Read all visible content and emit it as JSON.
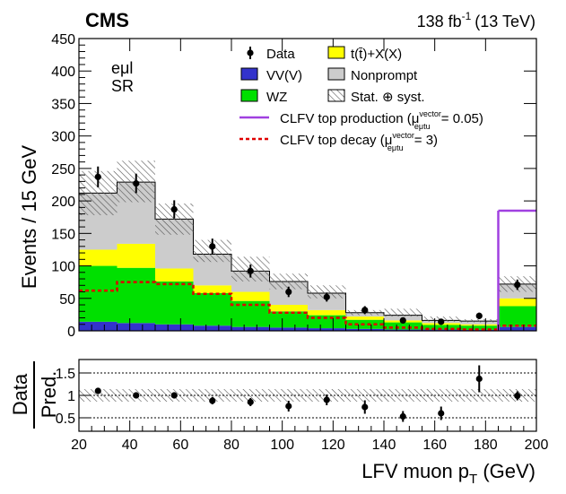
{
  "header": {
    "experiment": "CMS",
    "lumi_value": "138 fb",
    "lumi_exp": "-1",
    "lumi_energy": "(13 TeV)"
  },
  "channel": {
    "line1": "eμl",
    "line2": "SR"
  },
  "legend": {
    "data": "Data",
    "vvv": "VV(V)",
    "wz": "WZ",
    "ttx": "t(t̄)+X(X)",
    "nonprompt": "Nonprompt",
    "syst": "Stat. ⊕ syst.",
    "prod_text": "CLFV top production (μ",
    "prod_sup": "vector",
    "prod_sub": "eμtu",
    "prod_end": " = 0.05)",
    "decay_text": "CLFV top decay (μ",
    "decay_sup": "vector",
    "decay_sub": "eμtu",
    "decay_end": " = 3)"
  },
  "axes": {
    "ylabel_top": "Events / 15 GeV",
    "ylabel_ratio_num": "Data",
    "ylabel_ratio_den": "Pred.",
    "xlabel_main": "LFV muon p",
    "xlabel_sub": "T",
    "xlabel_unit": " (GeV)"
  },
  "colors": {
    "vvv": "#3333cc",
    "wz": "#00e000",
    "ttx": "#ffff00",
    "nonprompt": "#cccccc",
    "signal_prod": "#a040e0",
    "signal_decay": "#e00000"
  },
  "chart_data": {
    "type": "bar",
    "bin_edges": [
      20,
      35,
      50,
      65,
      80,
      95,
      110,
      125,
      140,
      155,
      170,
      185,
      200
    ],
    "main_ylim": [
      0,
      450
    ],
    "main_yticks": [
      0,
      50,
      100,
      150,
      200,
      250,
      300,
      350,
      400,
      450
    ],
    "ratio_ylim": [
      0.2,
      1.8
    ],
    "ratio_yticks": [
      0.5,
      1,
      1.5
    ],
    "xticks": [
      20,
      40,
      60,
      80,
      100,
      120,
      140,
      160,
      180,
      200
    ],
    "stack": [
      {
        "name": "VV(V)",
        "key": "vvv",
        "values": [
          14,
          12,
          10,
          8,
          6,
          5,
          4,
          3,
          2,
          2,
          1.5,
          6
        ]
      },
      {
        "name": "WZ",
        "key": "wz",
        "values": [
          86,
          85,
          66,
          50,
          40,
          25,
          20,
          14,
          11,
          7,
          6.5,
          32
        ]
      },
      {
        "name": "t(t̄)+X(X)",
        "key": "ttx",
        "values": [
          25,
          37,
          20,
          12,
          14,
          10,
          8,
          5,
          3,
          3,
          2,
          12
        ]
      },
      {
        "name": "Nonprompt",
        "key": "nonprompt",
        "values": [
          87,
          95,
          76,
          48,
          32,
          36,
          26,
          6,
          8,
          4,
          5,
          22
        ]
      }
    ],
    "syst_band": [
      [
        178,
        246
      ],
      [
        198,
        262
      ],
      [
        148,
        196
      ],
      [
        106,
        140
      ],
      [
        76,
        114
      ],
      [
        64,
        88
      ],
      [
        50,
        70
      ],
      [
        24,
        32
      ],
      [
        22,
        34
      ],
      [
        14,
        22
      ],
      [
        13,
        18
      ],
      [
        60,
        84
      ]
    ],
    "data": {
      "name": "Data",
      "x": [
        27.5,
        42.5,
        57.5,
        72.5,
        87.5,
        102.5,
        117.5,
        132.5,
        147.5,
        162.5,
        177.5,
        192.5
      ],
      "y": [
        237,
        227,
        187,
        130,
        92,
        60,
        52,
        32,
        16,
        14,
        23,
        71
      ],
      "err": [
        16,
        15,
        14,
        12,
        10,
        8,
        7,
        6,
        4,
        4,
        5,
        8
      ]
    },
    "signal_production": {
      "name": "CLFV top production (μ = 0.05)",
      "values": [
        0,
        0,
        0,
        0,
        0,
        0,
        0,
        0,
        0,
        0,
        0,
        185
      ]
    },
    "signal_decay": {
      "name": "CLFV top decay (μ = 3)",
      "values": [
        62,
        75,
        72,
        57,
        40,
        28,
        20,
        10,
        5,
        3,
        2,
        8
      ]
    },
    "ratio": {
      "y": [
        1.1,
        1.0,
        1.0,
        0.88,
        0.85,
        0.76,
        0.9,
        0.74,
        0.53,
        0.6,
        1.37,
        0.99
      ],
      "err": [
        0.07,
        0.07,
        0.07,
        0.08,
        0.09,
        0.12,
        0.12,
        0.15,
        0.12,
        0.15,
        0.3,
        0.1
      ],
      "band": [
        0.86,
        1.14
      ]
    }
  }
}
